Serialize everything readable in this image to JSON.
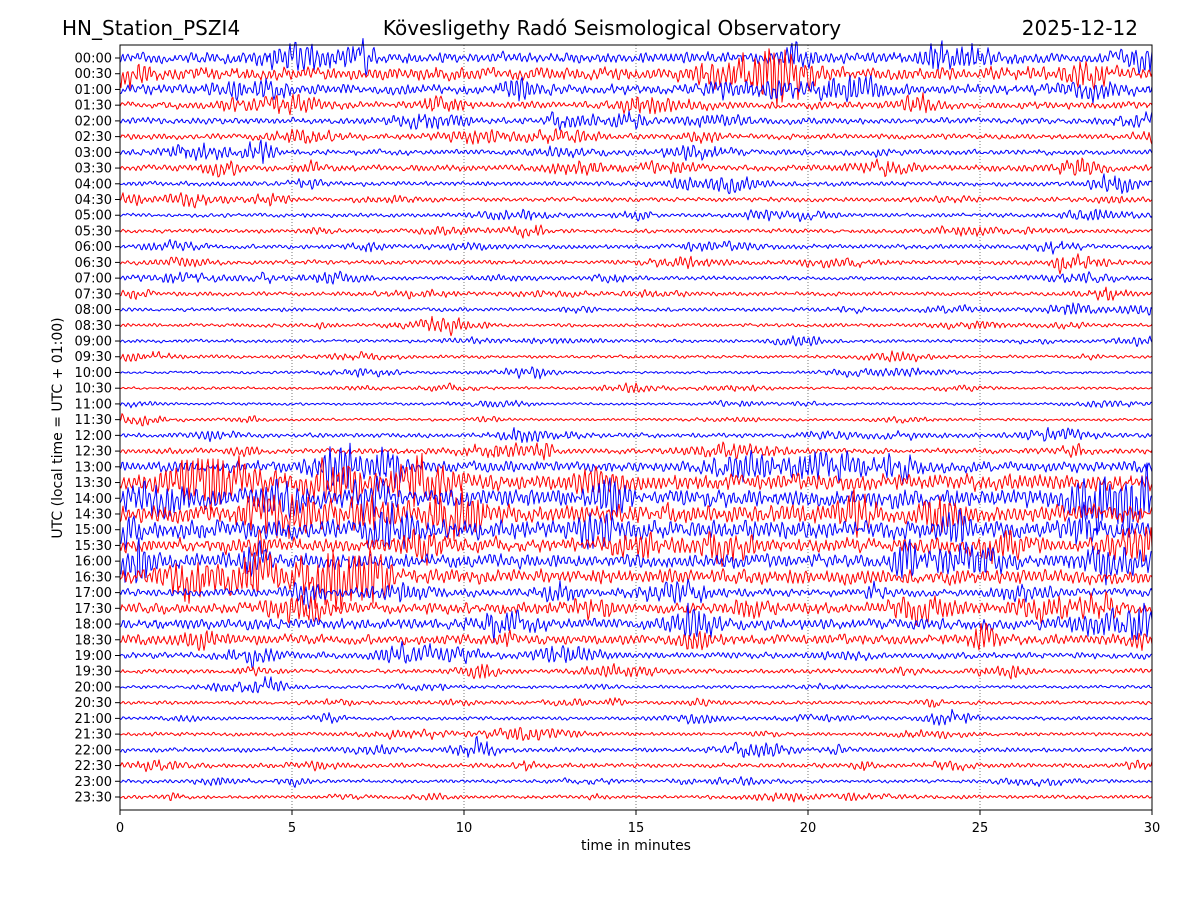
{
  "chart_data": {
    "type": "line",
    "subtype": "helicorder",
    "title_left": "HN_Station_PSZI4",
    "title": "Kövesligethy Radó Seismological Observatory",
    "title_right": "2025-12-12",
    "xlabel": "time in minutes",
    "ylabel": "UTC (local time = UTC + 01:00)",
    "xlim": [
      0,
      30
    ],
    "xticks": [
      "0",
      "5",
      "10",
      "15",
      "20",
      "25",
      "30"
    ],
    "xtick_values": [
      0,
      5,
      10,
      15,
      20,
      25,
      30
    ],
    "grid": "vertical-dotted",
    "colors": [
      "#0000ff",
      "#ff0000"
    ],
    "rows": [
      "00:00",
      "00:30",
      "01:00",
      "01:30",
      "02:00",
      "02:30",
      "03:00",
      "03:30",
      "04:00",
      "04:30",
      "05:00",
      "05:30",
      "06:00",
      "06:30",
      "07:00",
      "07:30",
      "08:00",
      "08:30",
      "09:00",
      "09:30",
      "10:00",
      "10:30",
      "11:00",
      "11:30",
      "12:00",
      "12:30",
      "13:00",
      "13:30",
      "14:00",
      "14:30",
      "15:00",
      "15:30",
      "16:00",
      "16:30",
      "17:00",
      "17:30",
      "18:00",
      "18:30",
      "19:00",
      "19:30",
      "20:00",
      "20:30",
      "21:00",
      "21:30",
      "22:00",
      "22:30",
      "23:00",
      "23:30"
    ],
    "relative_amplitude": [
      0.6,
      0.7,
      0.55,
      0.4,
      0.35,
      0.3,
      0.3,
      0.35,
      0.25,
      0.25,
      0.22,
      0.22,
      0.25,
      0.25,
      0.22,
      0.22,
      0.2,
      0.2,
      0.18,
      0.18,
      0.15,
      0.15,
      0.15,
      0.15,
      0.25,
      0.3,
      0.6,
      0.9,
      1.0,
      1.0,
      1.0,
      0.8,
      0.8,
      0.8,
      0.45,
      0.6,
      0.6,
      0.55,
      0.35,
      0.25,
      0.18,
      0.2,
      0.2,
      0.2,
      0.25,
      0.25,
      0.2,
      0.2
    ]
  }
}
